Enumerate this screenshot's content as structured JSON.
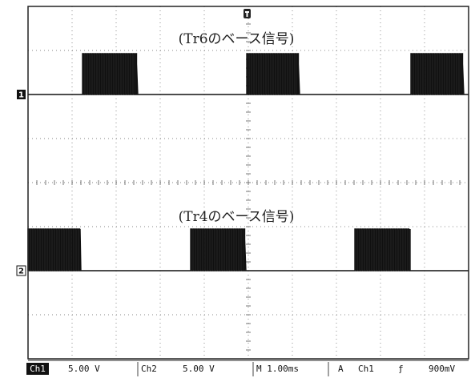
{
  "traces": [
    {
      "marker": "1",
      "label": "(Tr6のベース信号)"
    },
    {
      "marker": "2",
      "label": "(Tr4のベース信号)"
    }
  ],
  "status_bar": {
    "ch1": {
      "label": "Ch1",
      "scale": "5.00 V"
    },
    "ch2": {
      "label": "Ch2",
      "scale": "5.00 V"
    },
    "timebase": "M 1.00ms",
    "trigger": {
      "mode": "A",
      "source": "Ch1",
      "slope": "ƒ",
      "level": "900mV"
    }
  }
}
